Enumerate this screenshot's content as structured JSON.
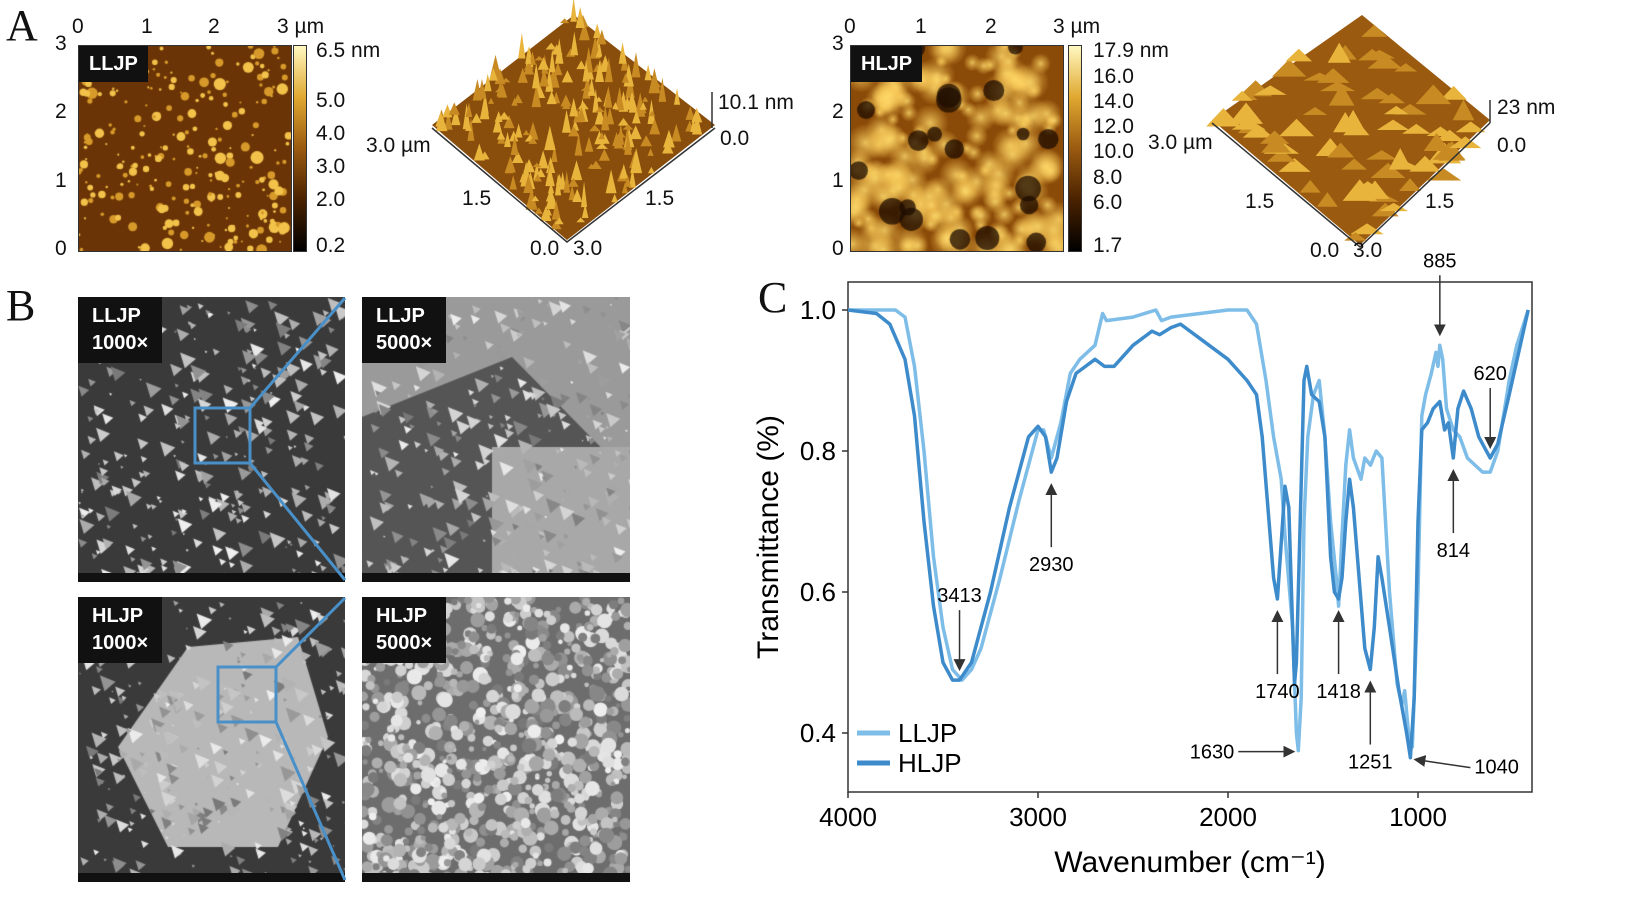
{
  "panels": {
    "a": "A",
    "b": "B",
    "c": "C"
  },
  "afm": [
    {
      "label": "LLJP",
      "x_ticks": [
        "0",
        "1",
        "2",
        "3 µm"
      ],
      "y_ticks": [
        "3",
        "2",
        "1",
        "0"
      ],
      "colorbar_ticks": [
        "6.5 nm",
        "5.0",
        "4.0",
        "3.0",
        "2.0",
        "0.2"
      ],
      "surface_3d": {
        "axis_left": "3.0 µm",
        "mid_left": "1.5",
        "mid_right": "1.5",
        "origin": "0.0",
        "right_end": "3.0",
        "z_max": "10.1 nm",
        "z_min": "0.0"
      }
    },
    {
      "label": "HLJP",
      "x_ticks": [
        "0",
        "1",
        "2",
        "3 µm"
      ],
      "y_ticks": [
        "3",
        "2",
        "1",
        "0"
      ],
      "colorbar_ticks": [
        "17.9 nm",
        "16.0",
        "14.0",
        "12.0",
        "10.0",
        "8.0",
        "6.0",
        "1.7"
      ],
      "surface_3d": {
        "axis_left": "3.0 µm",
        "mid_left": "1.5",
        "mid_right": "1.5",
        "origin": "0.0",
        "right_end": "3.0",
        "z_max": "23 nm",
        "z_min": "0.0"
      }
    }
  ],
  "sem": [
    {
      "sample": "LLJP",
      "mag": "1000×"
    },
    {
      "sample": "LLJP",
      "mag": "5000×"
    },
    {
      "sample": "HLJP",
      "mag": "1000×"
    },
    {
      "sample": "HLJP",
      "mag": "5000×"
    }
  ],
  "colors": {
    "afm_dark": "#2a1400",
    "afm_mid": "#9a5a10",
    "afm_light": "#fff2a0",
    "zoom_box": "#4a90c8",
    "llj": "#7dbde8",
    "hlj": "#3d8bcb"
  },
  "chart_data": {
    "type": "line",
    "title": "",
    "xlabel": "Wavenumber (cm⁻¹)",
    "ylabel": "Transmittance (%)",
    "xlim": [
      4000,
      400
    ],
    "ylim": [
      0.316,
      1.04
    ],
    "x_ticks": [
      "4000",
      "3000",
      "2000",
      "1000"
    ],
    "y_ticks": [
      "1.0",
      "0.8",
      "0.6",
      "0.4"
    ],
    "grid": false,
    "legend": "bottom-left",
    "series": [
      {
        "name": "LLJP",
        "color": "#7dbde8",
        "points": [
          [
            4000,
            1.0
          ],
          [
            3750,
            1.0
          ],
          [
            3700,
            0.99
          ],
          [
            3650,
            0.92
          ],
          [
            3600,
            0.8
          ],
          [
            3550,
            0.65
          ],
          [
            3500,
            0.55
          ],
          [
            3450,
            0.49
          ],
          [
            3400,
            0.475
          ],
          [
            3350,
            0.49
          ],
          [
            3300,
            0.52
          ],
          [
            3200,
            0.62
          ],
          [
            3100,
            0.73
          ],
          [
            3000,
            0.83
          ],
          [
            2970,
            0.83
          ],
          [
            2930,
            0.79
          ],
          [
            2880,
            0.84
          ],
          [
            2830,
            0.91
          ],
          [
            2780,
            0.93
          ],
          [
            2700,
            0.95
          ],
          [
            2660,
            0.995
          ],
          [
            2640,
            0.985
          ],
          [
            2500,
            0.99
          ],
          [
            2380,
            1.0
          ],
          [
            2350,
            0.985
          ],
          [
            2300,
            0.99
          ],
          [
            2000,
            1.0
          ],
          [
            1900,
            1.0
          ],
          [
            1850,
            0.98
          ],
          [
            1800,
            0.9
          ],
          [
            1760,
            0.82
          ],
          [
            1720,
            0.76
          ],
          [
            1700,
            0.68
          ],
          [
            1660,
            0.55
          ],
          [
            1640,
            0.4
          ],
          [
            1630,
            0.375
          ],
          [
            1615,
            0.45
          ],
          [
            1600,
            0.7
          ],
          [
            1580,
            0.82
          ],
          [
            1550,
            0.88
          ],
          [
            1520,
            0.9
          ],
          [
            1490,
            0.82
          ],
          [
            1460,
            0.7
          ],
          [
            1430,
            0.62
          ],
          [
            1418,
            0.58
          ],
          [
            1400,
            0.68
          ],
          [
            1380,
            0.78
          ],
          [
            1360,
            0.83
          ],
          [
            1340,
            0.79
          ],
          [
            1300,
            0.76
          ],
          [
            1280,
            0.79
          ],
          [
            1250,
            0.78
          ],
          [
            1220,
            0.8
          ],
          [
            1190,
            0.79
          ],
          [
            1150,
            0.6
          ],
          [
            1110,
            0.47
          ],
          [
            1085,
            0.44
          ],
          [
            1070,
            0.46
          ],
          [
            1050,
            0.4
          ],
          [
            1030,
            0.38
          ],
          [
            1000,
            0.6
          ],
          [
            980,
            0.85
          ],
          [
            960,
            0.88
          ],
          [
            930,
            0.91
          ],
          [
            905,
            0.94
          ],
          [
            895,
            0.92
          ],
          [
            885,
            0.95
          ],
          [
            870,
            0.93
          ],
          [
            850,
            0.86
          ],
          [
            814,
            0.83
          ],
          [
            780,
            0.82
          ],
          [
            740,
            0.79
          ],
          [
            700,
            0.78
          ],
          [
            660,
            0.77
          ],
          [
            620,
            0.77
          ],
          [
            580,
            0.8
          ],
          [
            520,
            0.9
          ],
          [
            480,
            0.95
          ],
          [
            420,
            1.0
          ]
        ]
      },
      {
        "name": "HLJP",
        "color": "#3d8bcb",
        "points": [
          [
            4000,
            1.0
          ],
          [
            3850,
            0.995
          ],
          [
            3780,
            0.98
          ],
          [
            3700,
            0.93
          ],
          [
            3650,
            0.85
          ],
          [
            3600,
            0.7
          ],
          [
            3550,
            0.58
          ],
          [
            3500,
            0.5
          ],
          [
            3450,
            0.475
          ],
          [
            3413,
            0.475
          ],
          [
            3350,
            0.5
          ],
          [
            3250,
            0.6
          ],
          [
            3150,
            0.72
          ],
          [
            3050,
            0.82
          ],
          [
            3000,
            0.835
          ],
          [
            2960,
            0.82
          ],
          [
            2930,
            0.77
          ],
          [
            2900,
            0.79
          ],
          [
            2850,
            0.87
          ],
          [
            2800,
            0.91
          ],
          [
            2750,
            0.92
          ],
          [
            2700,
            0.93
          ],
          [
            2650,
            0.92
          ],
          [
            2600,
            0.92
          ],
          [
            2500,
            0.95
          ],
          [
            2400,
            0.97
          ],
          [
            2360,
            0.965
          ],
          [
            2300,
            0.975
          ],
          [
            2250,
            0.98
          ],
          [
            2150,
            0.96
          ],
          [
            2000,
            0.93
          ],
          [
            1900,
            0.9
          ],
          [
            1850,
            0.88
          ],
          [
            1820,
            0.82
          ],
          [
            1790,
            0.72
          ],
          [
            1760,
            0.62
          ],
          [
            1740,
            0.59
          ],
          [
            1725,
            0.65
          ],
          [
            1700,
            0.75
          ],
          [
            1680,
            0.72
          ],
          [
            1660,
            0.55
          ],
          [
            1650,
            0.47
          ],
          [
            1640,
            0.5
          ],
          [
            1620,
            0.7
          ],
          [
            1600,
            0.9
          ],
          [
            1585,
            0.92
          ],
          [
            1560,
            0.88
          ],
          [
            1520,
            0.87
          ],
          [
            1490,
            0.82
          ],
          [
            1460,
            0.65
          ],
          [
            1440,
            0.6
          ],
          [
            1418,
            0.59
          ],
          [
            1400,
            0.62
          ],
          [
            1380,
            0.7
          ],
          [
            1360,
            0.76
          ],
          [
            1340,
            0.72
          ],
          [
            1310,
            0.62
          ],
          [
            1280,
            0.52
          ],
          [
            1251,
            0.49
          ],
          [
            1230,
            0.55
          ],
          [
            1210,
            0.65
          ],
          [
            1190,
            0.62
          ],
          [
            1150,
            0.55
          ],
          [
            1100,
            0.46
          ],
          [
            1080,
            0.43
          ],
          [
            1060,
            0.4
          ],
          [
            1040,
            0.365
          ],
          [
            1020,
            0.45
          ],
          [
            1000,
            0.7
          ],
          [
            980,
            0.83
          ],
          [
            950,
            0.84
          ],
          [
            920,
            0.86
          ],
          [
            885,
            0.87
          ],
          [
            860,
            0.83
          ],
          [
            840,
            0.84
          ],
          [
            814,
            0.79
          ],
          [
            790,
            0.86
          ],
          [
            760,
            0.885
          ],
          [
            720,
            0.86
          ],
          [
            680,
            0.82
          ],
          [
            640,
            0.8
          ],
          [
            620,
            0.79
          ],
          [
            580,
            0.81
          ],
          [
            520,
            0.88
          ],
          [
            470,
            0.94
          ],
          [
            420,
            1.0
          ]
        ]
      }
    ],
    "annotations": [
      {
        "text": "3413",
        "x": 3413,
        "y": 0.475,
        "dir": "down"
      },
      {
        "text": "2930",
        "x": 2930,
        "y": 0.77,
        "dir": "up"
      },
      {
        "text": "1740",
        "x": 1740,
        "y": 0.59,
        "dir": "up"
      },
      {
        "text": "1630",
        "x": 1630,
        "y": 0.375,
        "dir": "right"
      },
      {
        "text": "1418",
        "x": 1418,
        "y": 0.59,
        "dir": "up"
      },
      {
        "text": "1251",
        "x": 1251,
        "y": 0.49,
        "dir": "up"
      },
      {
        "text": "1040",
        "x": 1040,
        "y": 0.365,
        "dir": "left"
      },
      {
        "text": "885",
        "x": 885,
        "y": 0.95,
        "dir": "down"
      },
      {
        "text": "814",
        "x": 814,
        "y": 0.79,
        "dir": "up"
      },
      {
        "text": "620",
        "x": 620,
        "y": 0.79,
        "dir": "down"
      }
    ]
  }
}
